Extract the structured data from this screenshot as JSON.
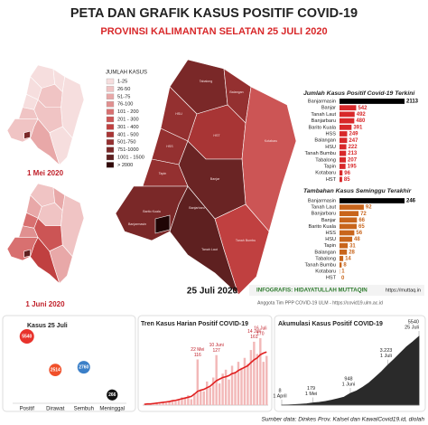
{
  "header": {
    "title": "PETA DAN GRAFIK KASUS POSITIF COVID-19",
    "subtitle": "PROVINSI KALIMANTAN SELATAN 25 JULI 2020"
  },
  "maps": {
    "legend_title": "JUMLAH KASUS",
    "legend": [
      {
        "label": "1-25",
        "color": "#f6dede"
      },
      {
        "label": "26-50",
        "color": "#f0c4c4"
      },
      {
        "label": "51-75",
        "color": "#e8a8a8"
      },
      {
        "label": "76-100",
        "color": "#e09090"
      },
      {
        "label": "101 - 200",
        "color": "#d87070"
      },
      {
        "label": "201 - 300",
        "color": "#cc5555"
      },
      {
        "label": "301 - 400",
        "color": "#c04040"
      },
      {
        "label": "401 - 500",
        "color": "#a83535"
      },
      {
        "label": "501-750",
        "color": "#943030"
      },
      {
        "label": "751-1000",
        "color": "#7a2828"
      },
      {
        "label": "1001 - 1500",
        "color": "#5e2020"
      },
      {
        "label": "> 2000",
        "color": "#300808"
      }
    ],
    "dates": [
      "1 Mei 2020",
      "1 Juni 2020",
      "25 Juli 2020"
    ],
    "labels": [
      "Tabalong",
      "Balangan",
      "HSU",
      "HST",
      "Kotabaru",
      "HSS",
      "Tapin",
      "Banjar",
      "Tanah Bumbu",
      "Tanah Laut",
      "Barito Kuala",
      "Banjarmasin",
      "Banjarbaru"
    ]
  },
  "credit": {
    "infografis": "INFOGRAFIS: HIDAYATULLAH MUTTAQIN",
    "url": "https://muttaq.in",
    "team": "Anggota Tim PPP COVID-19 ULM - https://covid19.ulm.ac.id"
  },
  "source": "Sumber data: Dinkes Prov. Kalsel dan KawalCovid19.id, diolah",
  "chart_data": [
    {
      "type": "hbar",
      "title": "Jumlah Kasus Positif Covid-19 Terkini",
      "categories": [
        "Banjarmasin",
        "Banjar",
        "Tanah Laut",
        "Banjarbaru",
        "Barito Kuala",
        "HSS",
        "Balangan",
        "HSU",
        "Tanah Bumbu",
        "Tabalong",
        "Tapin",
        "Kotabaru",
        "HST"
      ],
      "values": [
        2113,
        542,
        492,
        480,
        391,
        249,
        247,
        222,
        213,
        207,
        195,
        96,
        85
      ],
      "colors": [
        "#000000",
        "#d8282a",
        "#d8282a",
        "#d8282a",
        "#d8282a",
        "#d8282a",
        "#d8282a",
        "#d8282a",
        "#d8282a",
        "#d8282a",
        "#d8282a",
        "#d8282a",
        "#d8282a"
      ]
    },
    {
      "type": "hbar",
      "title": "Tambahan Kasus Seminggu Terakhir",
      "categories": [
        "Banjarmasin",
        "Tanah Laut",
        "Banjarbaru",
        "Banjar",
        "Barito Kuala",
        "HSS",
        "HSU",
        "Tapin",
        "Balangan",
        "Tabalong",
        "Tanah Bumbu",
        "Kotabaru",
        "HST"
      ],
      "values": [
        246,
        92,
        72,
        66,
        65,
        56,
        48,
        31,
        28,
        14,
        8,
        1,
        0
      ],
      "colors": [
        "#000000",
        "#c8651c",
        "#c8651c",
        "#c8651c",
        "#c8651c",
        "#c8651c",
        "#c8651c",
        "#c8651c",
        "#c8651c",
        "#c8651c",
        "#c8651c",
        "#c8651c",
        "#c8651c"
      ]
    },
    {
      "type": "bubble",
      "title": "Kasus 25 Juli",
      "categories": [
        "Positif",
        "Dirawat",
        "Sembuh",
        "Meninggal"
      ],
      "values": [
        5540,
        2514,
        2760,
        266
      ],
      "colors": [
        "#e8332c",
        "#f0502a",
        "#3a7fc8",
        "#111111"
      ]
    },
    {
      "type": "bar-line",
      "title": "Tren Kasus Harian Positif COVID-19",
      "categories": [
        null,
        null,
        null,
        null,
        null,
        null,
        null,
        null,
        null,
        null,
        null,
        null,
        null,
        null,
        null,
        null,
        null,
        "22 Mei",
        null,
        null,
        null,
        null,
        null,
        "10 Juni",
        null,
        null,
        null,
        null,
        null,
        null,
        null,
        null,
        null,
        null,
        null,
        "14 Juli",
        null,
        "16 Juli",
        null,
        null
      ],
      "series": [
        {
          "type": "bar",
          "color": "#f2b8b8",
          "values": [
            1,
            2,
            3,
            2,
            5,
            4,
            8,
            6,
            10,
            12,
            9,
            14,
            20,
            18,
            25,
            15,
            30,
            116,
            40,
            35,
            60,
            45,
            70,
            127,
            55,
            80,
            90,
            65,
            100,
            85,
            110,
            95,
            120,
            105,
            140,
            161,
            130,
            170,
            110,
            125
          ]
        },
        {
          "type": "line",
          "color": "#e02020",
          "values": [
            2,
            3,
            3,
            4,
            5,
            6,
            7,
            8,
            9,
            11,
            12,
            14,
            16,
            18,
            20,
            22,
            28,
            35,
            38,
            40,
            44,
            48,
            55,
            62,
            66,
            70,
            72,
            75,
            80,
            82,
            88,
            92,
            96,
            100,
            108,
            115,
            120,
            128,
            132,
            135
          ]
        }
      ]
    },
    {
      "type": "area",
      "title": "Akumulasi Kasus Positif COVID-19",
      "color": "#2a2a2a",
      "categories": [
        "1 April",
        null,
        null,
        null,
        null,
        "1 Mei",
        null,
        null,
        null,
        null,
        null,
        "1 Juni",
        null,
        null,
        null,
        null,
        null,
        "1 Juli",
        null,
        null,
        null,
        null,
        "25 Juli"
      ],
      "values": [
        8,
        20,
        40,
        70,
        110,
        179,
        230,
        300,
        400,
        520,
        650,
        948,
        1150,
        1450,
        1800,
        2250,
        2700,
        3223,
        3700,
        4200,
        4700,
        5100,
        5540
      ],
      "value_labels": [
        null,
        null,
        null,
        null,
        null,
        null,
        null,
        null,
        null,
        null,
        null,
        null,
        null,
        null,
        null,
        null,
        null,
        "3.223",
        null,
        null,
        null,
        null,
        null
      ]
    }
  ]
}
